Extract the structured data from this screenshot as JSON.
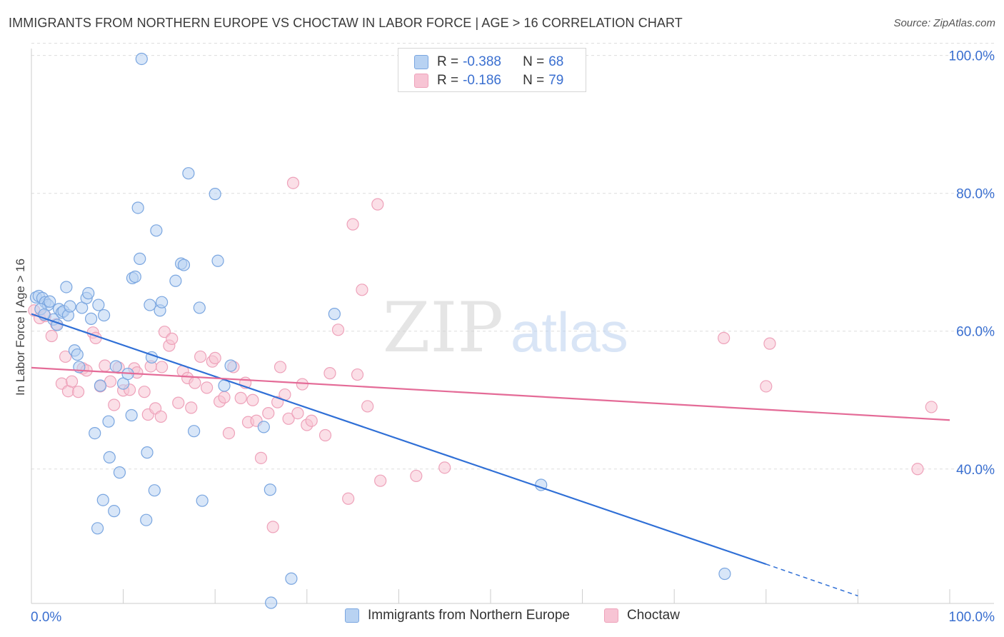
{
  "title": "IMMIGRANTS FROM NORTHERN EUROPE VS CHOCTAW IN LABOR FORCE | AGE > 16 CORRELATION CHART",
  "source": "Source: ZipAtlas.com",
  "colors": {
    "blue_fill": "#b8d2f2",
    "blue_stroke": "#7aa6e0",
    "blue_line": "#2f6fd6",
    "pink_fill": "#f7c4d4",
    "pink_stroke": "#eea2ba",
    "pink_line": "#e46b97",
    "tick_label": "#3a6fd0",
    "grid": "#dddddd"
  },
  "legend_top": {
    "rows": [
      {
        "r_label": "R =",
        "r_value": "-0.388",
        "n_label": "N =",
        "n_value": "68"
      },
      {
        "r_label": "R =",
        "r_value": "-0.186",
        "n_label": "N =",
        "n_value": "79"
      }
    ]
  },
  "legend_bottom": {
    "items": [
      "Immigrants from Northern Europe",
      "Choctaw"
    ]
  },
  "chart_data": {
    "type": "scatter",
    "title": "IMMIGRANTS FROM NORTHERN EUROPE VS CHOCTAW IN LABOR FORCE | AGE > 16 CORRELATION CHART",
    "xlabel": "",
    "ylabel": "In Labor Force | Age > 16",
    "xlim": [
      0,
      100
    ],
    "ylim": [
      20.5,
      101
    ],
    "x_tick_labels": [
      "0.0%",
      "100.0%"
    ],
    "y_ticks": [
      40,
      60,
      80,
      100
    ],
    "y_tick_labels": [
      "40.0%",
      "60.0%",
      "80.0%",
      "100.0%"
    ],
    "grid": true,
    "watermark": {
      "zip": "ZIP",
      "atlas": "atlas"
    },
    "series": [
      {
        "name": "Immigrants from Northern Europe",
        "r": -0.388,
        "n": 68,
        "trend": {
          "x0": 0,
          "y0": 62.5,
          "x1": 80,
          "y1": 26.2,
          "dash_to_x": 90,
          "dash_to_y": 21.6
        },
        "points": [
          [
            0.5,
            64.9
          ],
          [
            0.8,
            65.1
          ],
          [
            1.2,
            64.8
          ],
          [
            1.5,
            64.2
          ],
          [
            1.8,
            63.8
          ],
          [
            2.0,
            64.3
          ],
          [
            2.4,
            61.7
          ],
          [
            3.0,
            63.2
          ],
          [
            3.3,
            62.7
          ],
          [
            3.5,
            62.9
          ],
          [
            3.8,
            66.4
          ],
          [
            4.0,
            62.3
          ],
          [
            4.7,
            57.2
          ],
          [
            5.0,
            56.6
          ],
          [
            5.2,
            54.8
          ],
          [
            5.5,
            63.4
          ],
          [
            6.0,
            64.8
          ],
          [
            6.2,
            65.5
          ],
          [
            6.5,
            61.8
          ],
          [
            7.3,
            63.8
          ],
          [
            7.5,
            52.1
          ],
          [
            7.9,
            62.3
          ],
          [
            8.4,
            46.9
          ],
          [
            8.5,
            41.7
          ],
          [
            9.2,
            54.9
          ],
          [
            9.6,
            39.5
          ],
          [
            10.0,
            52.4
          ],
          [
            10.5,
            53.8
          ],
          [
            10.9,
            47.8
          ],
          [
            11.0,
            67.7
          ],
          [
            11.3,
            67.9
          ],
          [
            11.6,
            77.9
          ],
          [
            11.8,
            70.5
          ],
          [
            12.0,
            99.5
          ],
          [
            12.5,
            32.6
          ],
          [
            12.6,
            42.4
          ],
          [
            12.9,
            63.8
          ],
          [
            13.1,
            56.2
          ],
          [
            13.4,
            36.9
          ],
          [
            13.6,
            74.6
          ],
          [
            14.0,
            63.0
          ],
          [
            14.2,
            64.2
          ],
          [
            15.7,
            67.3
          ],
          [
            16.3,
            69.8
          ],
          [
            16.6,
            69.6
          ],
          [
            17.1,
            82.9
          ],
          [
            17.7,
            45.5
          ],
          [
            18.3,
            63.4
          ],
          [
            18.6,
            35.4
          ],
          [
            20.0,
            79.9
          ],
          [
            20.3,
            70.2
          ],
          [
            21.7,
            55.0
          ],
          [
            21.0,
            52.1
          ],
          [
            6.9,
            45.2
          ],
          [
            7.8,
            35.5
          ],
          [
            9.0,
            33.9
          ],
          [
            7.2,
            31.4
          ],
          [
            25.3,
            46.1
          ],
          [
            26.0,
            37.0
          ],
          [
            26.1,
            20.6
          ],
          [
            28.3,
            24.1
          ],
          [
            33.0,
            62.5
          ],
          [
            55.5,
            37.7
          ],
          [
            75.5,
            24.8
          ],
          [
            2.8,
            60.9
          ],
          [
            1.0,
            63.2
          ],
          [
            4.2,
            63.6
          ],
          [
            1.4,
            62.4
          ]
        ]
      },
      {
        "name": "Choctaw",
        "r": -0.186,
        "n": 79,
        "trend": {
          "x0": 0,
          "y0": 54.7,
          "x1": 100,
          "y1": 47.1
        },
        "points": [
          [
            0.3,
            63.0
          ],
          [
            0.9,
            61.9
          ],
          [
            1.5,
            62.2
          ],
          [
            2.2,
            59.3
          ],
          [
            2.7,
            61.0
          ],
          [
            3.3,
            52.4
          ],
          [
            3.7,
            56.3
          ],
          [
            4.0,
            51.3
          ],
          [
            4.4,
            52.7
          ],
          [
            5.1,
            51.2
          ],
          [
            5.6,
            54.6
          ],
          [
            6.0,
            54.3
          ],
          [
            6.7,
            59.8
          ],
          [
            7.0,
            59.0
          ],
          [
            7.5,
            52.0
          ],
          [
            8.0,
            55.0
          ],
          [
            8.6,
            52.7
          ],
          [
            9.0,
            49.3
          ],
          [
            9.5,
            54.7
          ],
          [
            10.0,
            51.4
          ],
          [
            10.7,
            51.5
          ],
          [
            11.2,
            54.6
          ],
          [
            11.5,
            54.0
          ],
          [
            12.3,
            51.2
          ],
          [
            12.7,
            47.9
          ],
          [
            13.0,
            54.9
          ],
          [
            13.5,
            48.8
          ],
          [
            14.1,
            47.6
          ],
          [
            14.5,
            59.9
          ],
          [
            15.0,
            57.9
          ],
          [
            15.3,
            58.9
          ],
          [
            16.0,
            49.6
          ],
          [
            16.5,
            54.2
          ],
          [
            17.0,
            53.2
          ],
          [
            17.4,
            48.9
          ],
          [
            17.8,
            52.5
          ],
          [
            18.4,
            56.3
          ],
          [
            19.1,
            51.8
          ],
          [
            19.7,
            55.6
          ],
          [
            20.0,
            56.1
          ],
          [
            20.5,
            49.8
          ],
          [
            21.0,
            50.4
          ],
          [
            21.5,
            45.2
          ],
          [
            22.0,
            54.8
          ],
          [
            22.8,
            50.3
          ],
          [
            23.3,
            52.5
          ],
          [
            23.6,
            46.8
          ],
          [
            24.1,
            50.0
          ],
          [
            24.5,
            47.0
          ],
          [
            25.0,
            41.6
          ],
          [
            25.8,
            48.1
          ],
          [
            26.3,
            31.6
          ],
          [
            26.8,
            49.7
          ],
          [
            27.1,
            54.8
          ],
          [
            27.6,
            50.8
          ],
          [
            28.0,
            47.3
          ],
          [
            28.5,
            81.5
          ],
          [
            29.0,
            48.1
          ],
          [
            29.5,
            52.3
          ],
          [
            30.0,
            46.4
          ],
          [
            30.5,
            47.0
          ],
          [
            32.0,
            44.9
          ],
          [
            32.5,
            53.9
          ],
          [
            33.4,
            60.2
          ],
          [
            34.5,
            35.7
          ],
          [
            35.0,
            75.5
          ],
          [
            35.5,
            53.7
          ],
          [
            36.0,
            66.0
          ],
          [
            36.6,
            49.1
          ],
          [
            37.7,
            78.4
          ],
          [
            38.0,
            38.3
          ],
          [
            41.9,
            39.0
          ],
          [
            45.0,
            40.2
          ],
          [
            75.4,
            59.0
          ],
          [
            80.0,
            52.0
          ],
          [
            80.4,
            58.2
          ],
          [
            96.5,
            40.0
          ],
          [
            98.0,
            49.0
          ],
          [
            14.2,
            54.8
          ]
        ]
      }
    ]
  }
}
